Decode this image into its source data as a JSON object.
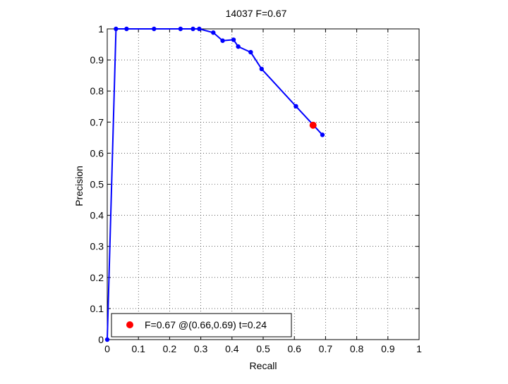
{
  "chart_data": {
    "type": "line",
    "title": "14037 F=0.67",
    "xlabel": "Recall",
    "ylabel": "Precision",
    "xlim": [
      0,
      1
    ],
    "ylim": [
      0,
      1
    ],
    "grid": true,
    "x_ticks": [
      "0",
      "0.1",
      "0.2",
      "0.3",
      "0.4",
      "0.5",
      "0.6",
      "0.7",
      "0.8",
      "0.9",
      "1"
    ],
    "y_ticks": [
      "0",
      "0.1",
      "0.2",
      "0.3",
      "0.4",
      "0.5",
      "0.6",
      "0.7",
      "0.8",
      "0.9",
      "1"
    ],
    "series": [
      {
        "color": "#0000ff",
        "marker": "dot",
        "x": [
          0.0,
          0.028,
          0.062,
          0.15,
          0.235,
          0.275,
          0.295,
          0.34,
          0.37,
          0.405,
          0.42,
          0.46,
          0.495,
          0.605,
          0.69
        ],
        "y": [
          0.0,
          1.0,
          1.0,
          1.0,
          1.0,
          1.0,
          1.0,
          0.988,
          0.962,
          0.965,
          0.943,
          0.925,
          0.871,
          0.751,
          0.659
        ]
      }
    ],
    "highlight": {
      "x": 0.66,
      "y": 0.69,
      "color": "#ff0000"
    },
    "legend": {
      "position": "bottom-left",
      "text": "F=0.67 @(0.66,0.69) t=0.24"
    }
  }
}
